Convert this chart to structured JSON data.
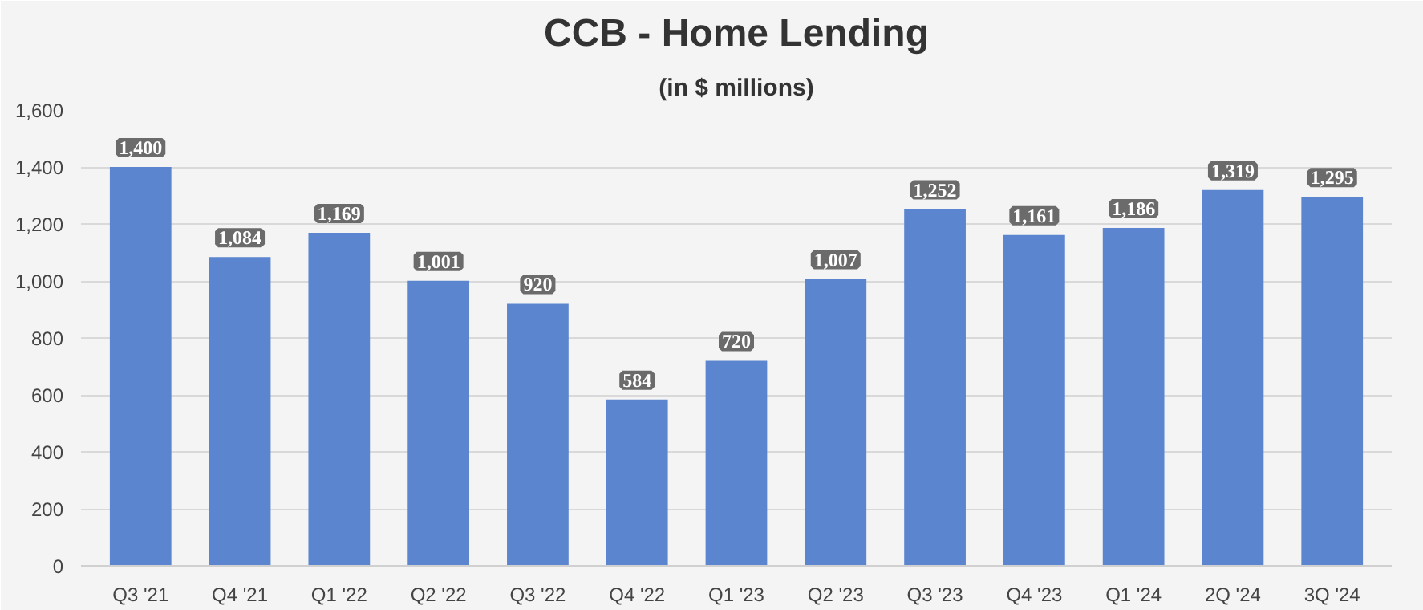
{
  "chart_data": {
    "type": "bar",
    "title": "CCB - Home Lending",
    "subtitle": "(in $ millions)",
    "categories": [
      "Q3 '21",
      "Q4 '21",
      "Q1 '22",
      "Q2 '22",
      "Q3 '22",
      "Q4 '22",
      "Q1 '23",
      "Q2 '23",
      "Q3 '23",
      "Q4 '23",
      "Q1 '24",
      "2Q '24",
      "3Q '24"
    ],
    "values": [
      1400,
      1084,
      1169,
      1001,
      920,
      584,
      720,
      1007,
      1252,
      1161,
      1186,
      1319,
      1295
    ],
    "value_labels": [
      "1,400",
      "1,084",
      "1,169",
      "1,001",
      "920",
      "584",
      "720",
      "1,007",
      "1,252",
      "1,161",
      "1,186",
      "1,319",
      "1,295"
    ],
    "color": "#5b85cf",
    "ylim": [
      0,
      1600
    ],
    "yticks": [
      {
        "value": 0,
        "label": "0"
      },
      {
        "value": 200,
        "label": "200"
      },
      {
        "value": 400,
        "label": "400"
      },
      {
        "value": 600,
        "label": "600"
      },
      {
        "value": 800,
        "label": "800"
      },
      {
        "value": 1000,
        "label": "1,000"
      },
      {
        "value": 1200,
        "label": "1,200"
      },
      {
        "value": 1400,
        "label": "1,400"
      },
      {
        "value": 1600,
        "label": "1,600"
      }
    ],
    "grid": "y"
  }
}
